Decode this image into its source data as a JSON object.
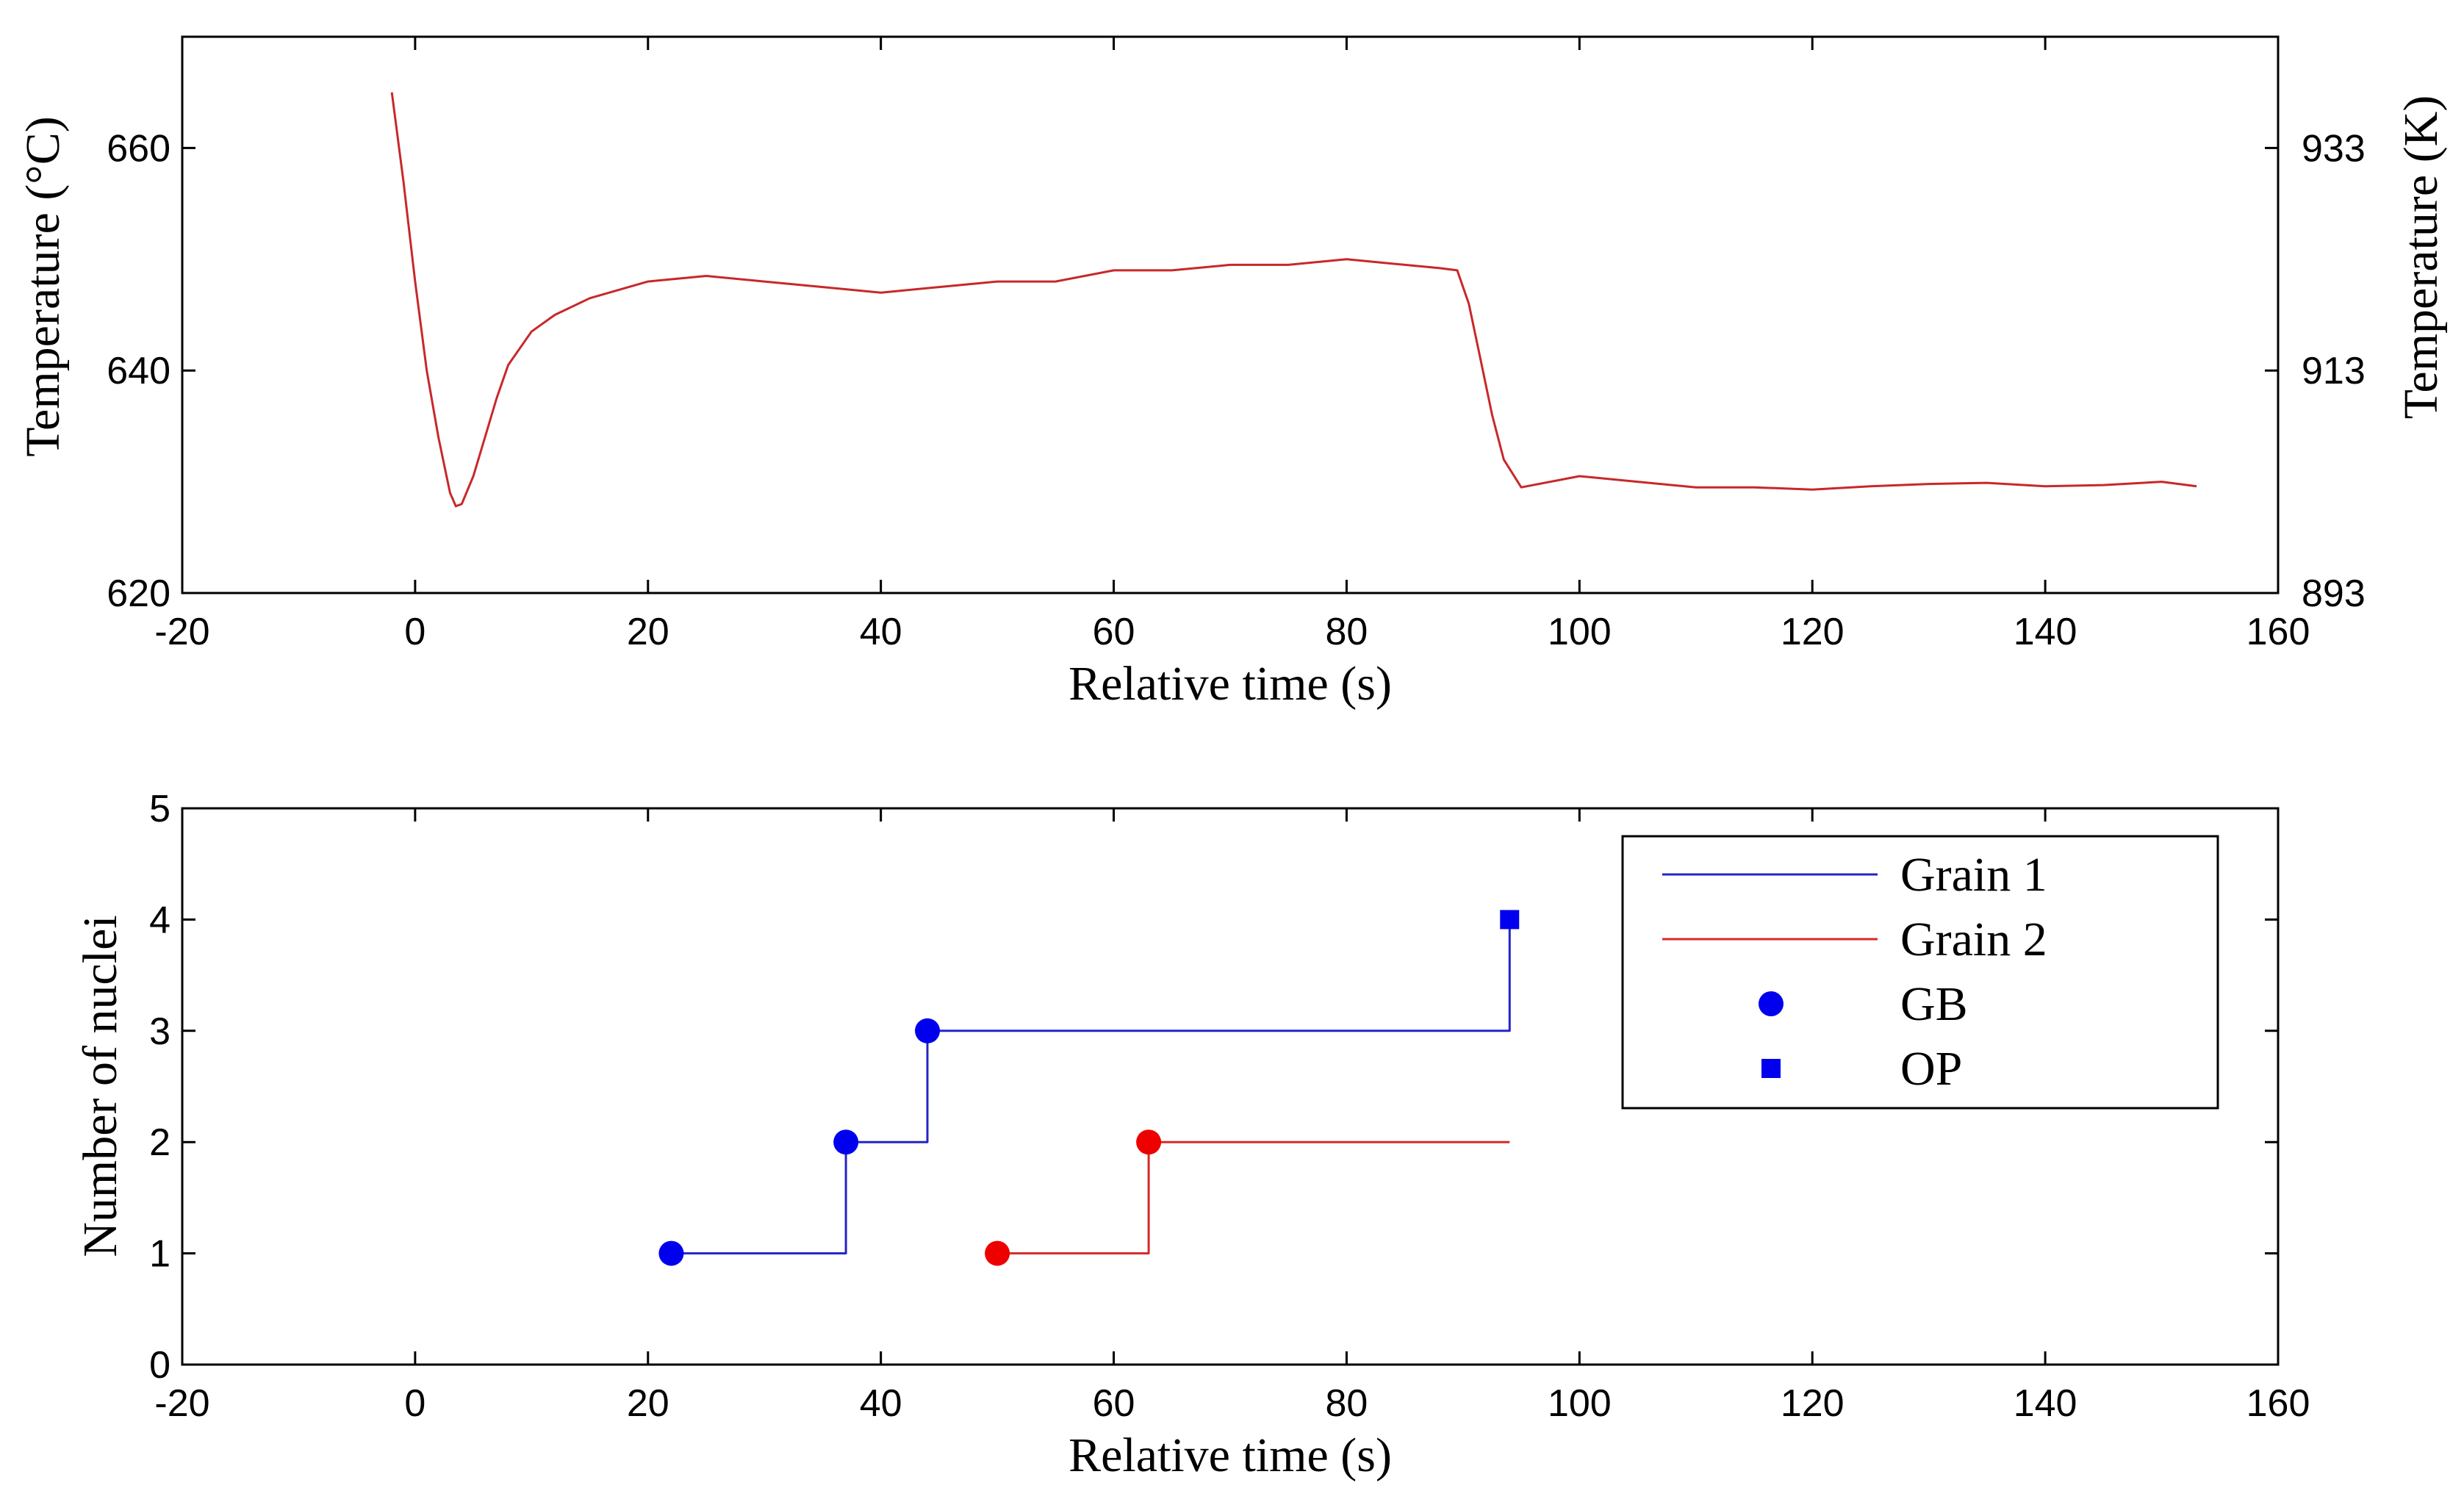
{
  "chart_data": [
    {
      "type": "line",
      "xlabel": "Relative time (s)",
      "ylabel": "Temperature (°C)",
      "ylabel_right": "Temperature (K)",
      "xlim": [
        -20,
        160
      ],
      "ylim": [
        620,
        670
      ],
      "xticks": [
        -20,
        0,
        20,
        40,
        60,
        80,
        100,
        120,
        140,
        160
      ],
      "yticks": [
        620,
        640,
        660
      ],
      "yticks_right": [
        893,
        913,
        933
      ],
      "grid": false,
      "series": [
        {
          "name": "Temperature",
          "color": "#c8282a",
          "x": [
            -2,
            -1,
            0,
            1,
            2,
            3,
            3.5,
            4,
            5,
            6,
            7,
            8,
            10,
            12,
            15,
            20,
            25,
            30,
            35,
            40,
            45,
            50,
            55,
            60,
            65,
            70,
            75,
            80,
            85,
            88,
            89.5,
            90.5,
            91.5,
            92.5,
            93.5,
            95,
            100,
            105,
            110,
            115,
            120,
            125,
            130,
            135,
            140,
            145,
            150,
            153
          ],
          "y": [
            665,
            657,
            648,
            640,
            634,
            629,
            627.8,
            628,
            630.5,
            634,
            637.5,
            640.5,
            643.5,
            645,
            646.5,
            648,
            648.5,
            648,
            647.5,
            647,
            647.5,
            648,
            648,
            649,
            649,
            649.5,
            649.5,
            650,
            649.5,
            649.2,
            649,
            646,
            641,
            636,
            632,
            629.5,
            630.5,
            630,
            629.5,
            629.5,
            629.3,
            629.6,
            629.8,
            629.9,
            629.6,
            629.7,
            630,
            629.6
          ]
        }
      ]
    },
    {
      "type": "line",
      "xlabel": "Relative time (s)",
      "ylabel": "Number of nuclei",
      "xlim": [
        -20,
        160
      ],
      "ylim": [
        0,
        5
      ],
      "xticks": [
        -20,
        0,
        20,
        40,
        60,
        80,
        100,
        120,
        140,
        160
      ],
      "yticks": [
        0,
        1,
        2,
        3,
        4,
        5
      ],
      "grid": false,
      "legend_position": "top-right",
      "series": [
        {
          "name": "Grain 1",
          "color": "#2424c8",
          "x": [
            22,
            37,
            37,
            44,
            44,
            94,
            94
          ],
          "y": [
            1,
            1,
            2,
            2,
            3,
            3,
            4
          ]
        },
        {
          "name": "Grain 2",
          "color": "#d42a2a",
          "x": [
            50,
            63,
            63,
            94
          ],
          "y": [
            1,
            1,
            2,
            2
          ]
        }
      ],
      "markers": [
        {
          "name": "GB",
          "shape": "circle",
          "points": [
            {
              "x": 22,
              "y": 1,
              "color": "#0000ee"
            },
            {
              "x": 37,
              "y": 2,
              "color": "#0000ee"
            },
            {
              "x": 44,
              "y": 3,
              "color": "#0000ee"
            },
            {
              "x": 50,
              "y": 1,
              "color": "#ee0000"
            },
            {
              "x": 63,
              "y": 2,
              "color": "#ee0000"
            }
          ]
        },
        {
          "name": "OP",
          "shape": "square",
          "points": [
            {
              "x": 94,
              "y": 4,
              "color": "#0000ee"
            }
          ]
        }
      ],
      "legend": [
        {
          "label": "Grain 1",
          "kind": "line",
          "color": "#2424c8"
        },
        {
          "label": "Grain 2",
          "kind": "line",
          "color": "#d42a2a"
        },
        {
          "label": "GB",
          "kind": "circle",
          "color": "#0000ee"
        },
        {
          "label": "OP",
          "kind": "square",
          "color": "#0000ee"
        }
      ]
    }
  ]
}
